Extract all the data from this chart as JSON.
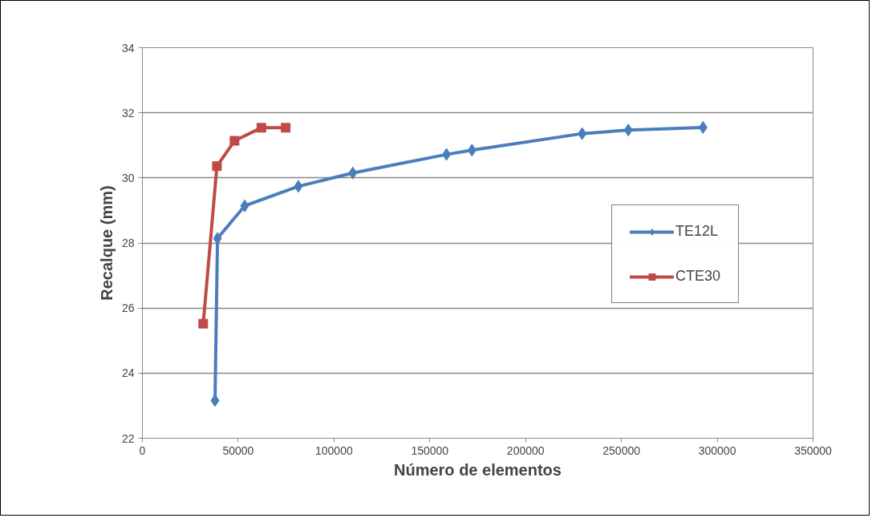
{
  "chart_data": {
    "type": "line",
    "xlabel": "Número de elementos",
    "ylabel": "Recalque (mm)",
    "xlim": [
      0,
      350000
    ],
    "xticks": [
      0,
      50000,
      100000,
      150000,
      200000,
      250000,
      300000,
      350000
    ],
    "ylim": [
      22,
      34
    ],
    "yticks": [
      22,
      24,
      26,
      28,
      30,
      32,
      34
    ],
    "grid": "y",
    "legend": "right",
    "line_style": "solid",
    "series": [
      {
        "name": "TE12L",
        "color": "#4a7ebb",
        "marker": "diamond",
        "x": [
          37900,
          39200,
          53400,
          81400,
          109800,
          158700,
          172000,
          229500,
          253600,
          292600
        ],
        "values": [
          23.16,
          28.14,
          29.14,
          29.74,
          30.15,
          30.72,
          30.85,
          31.36,
          31.47,
          31.55
        ]
      },
      {
        "name": "CTE30",
        "color": "#be4b48",
        "marker": "square",
        "x": [
          31750,
          38900,
          48100,
          62100,
          74800
        ],
        "values": [
          25.52,
          30.36,
          31.14,
          31.54,
          31.54
        ]
      }
    ]
  }
}
